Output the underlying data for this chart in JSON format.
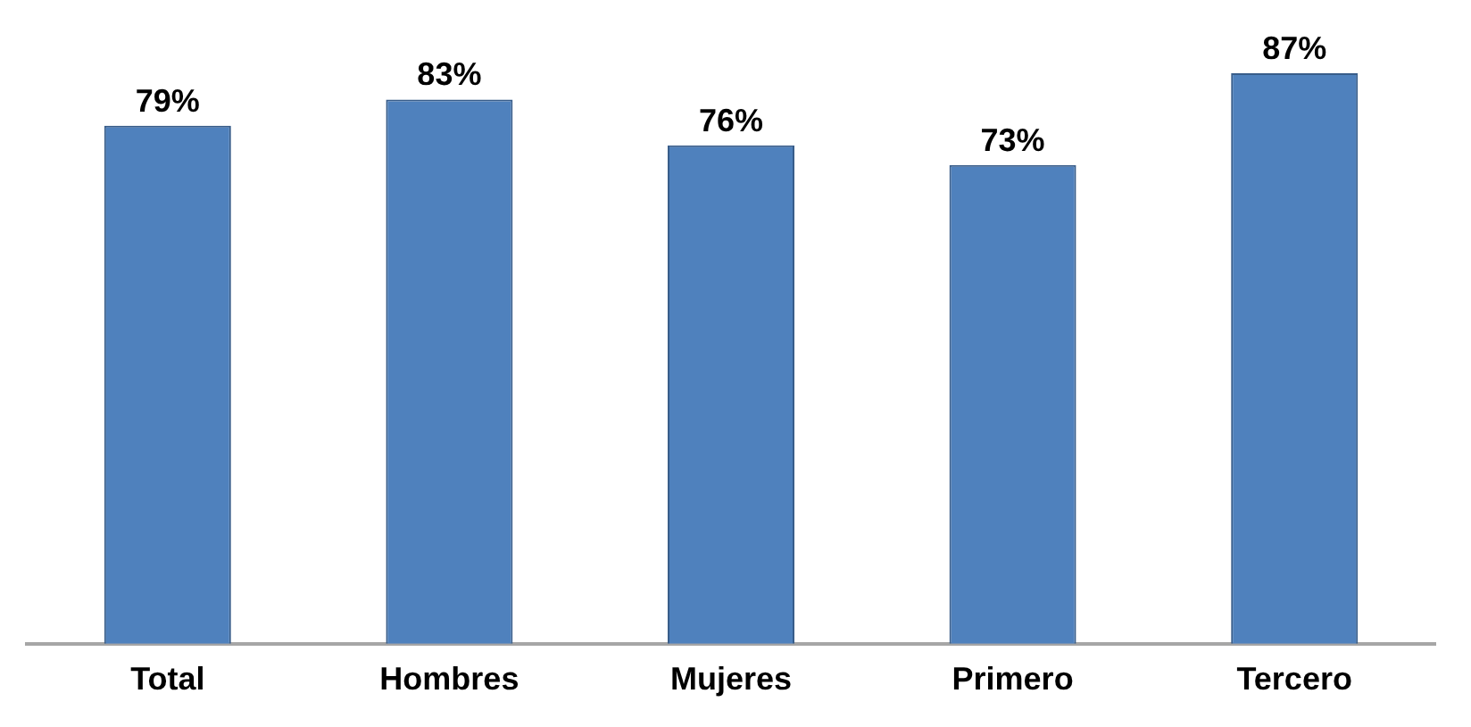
{
  "chart_data": {
    "type": "bar",
    "categories": [
      "Total",
      "Hombres",
      "Mujeres",
      "Primero",
      "Tercero"
    ],
    "values": [
      79,
      83,
      76,
      73,
      87
    ],
    "value_labels": [
      "79%",
      "83%",
      "76%",
      "73%",
      "87%"
    ],
    "color": "#4f81bd",
    "grid": false,
    "legend": false
  }
}
